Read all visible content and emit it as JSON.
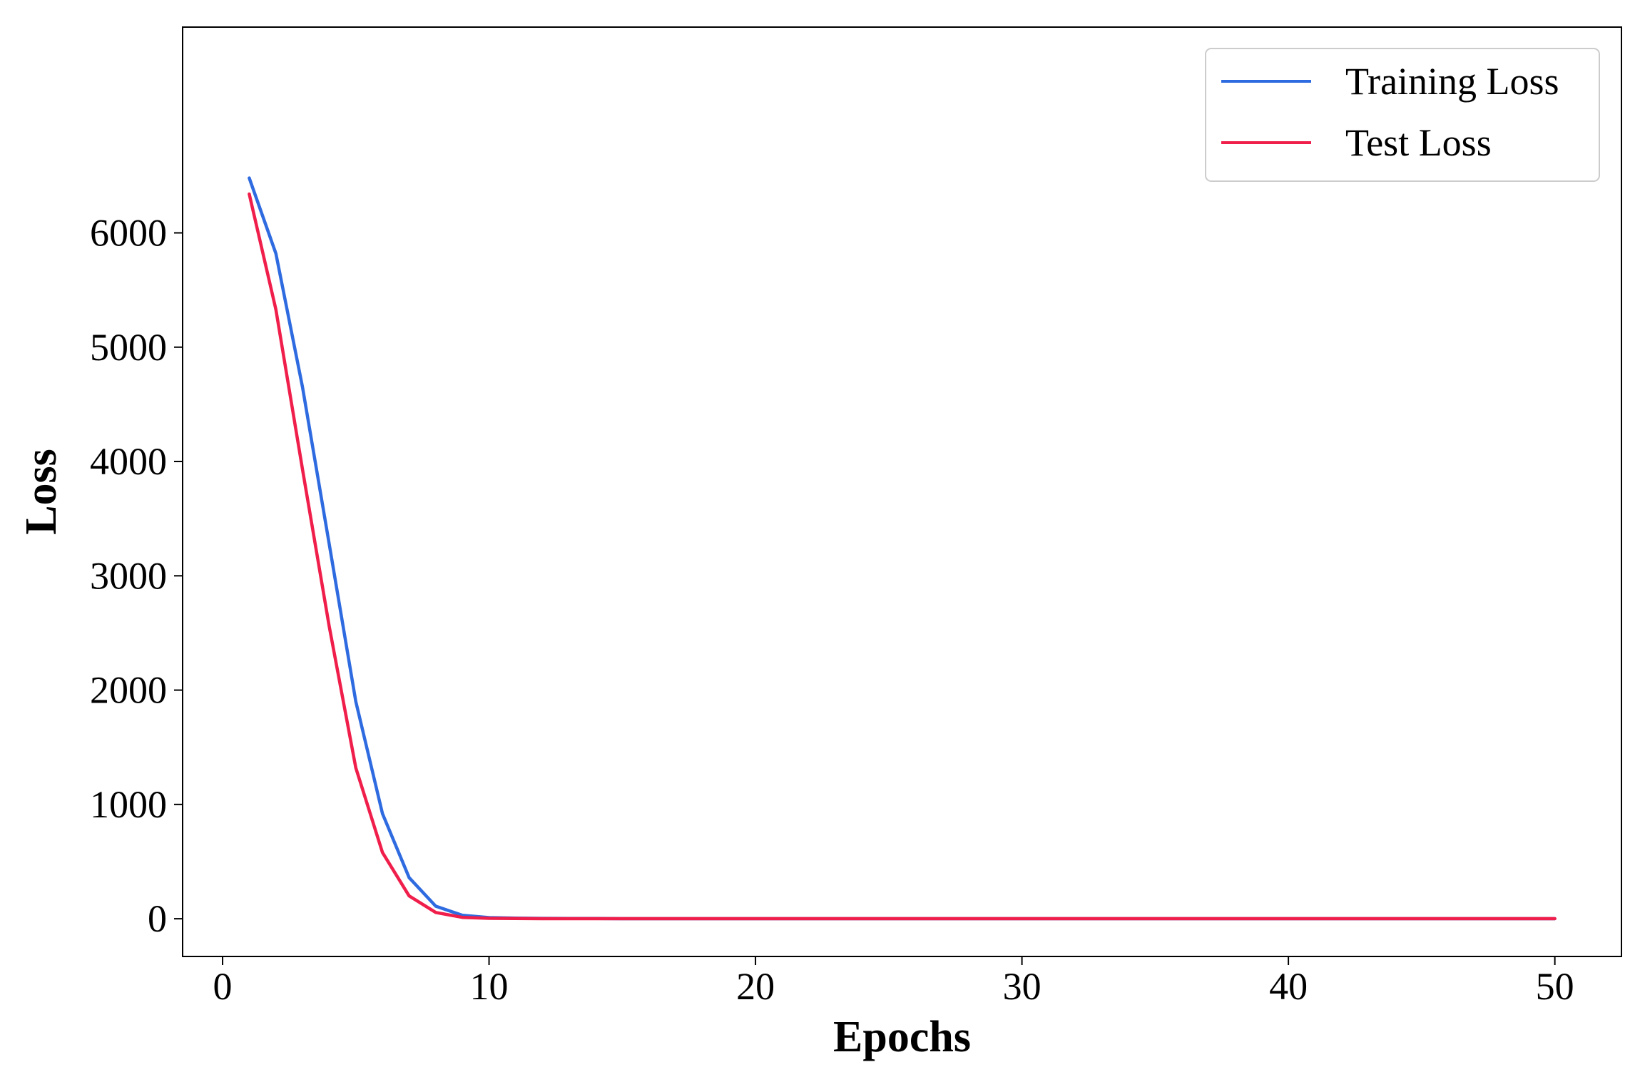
{
  "chart_data": {
    "type": "line",
    "title": "",
    "xlabel": "Epochs",
    "ylabel": "Loss",
    "xlim": [
      -1.5,
      52.5
    ],
    "ylim": [
      -330,
      7800
    ],
    "xticks": [
      0,
      10,
      20,
      30,
      40,
      50
    ],
    "yticks": [
      0,
      1000,
      2000,
      3000,
      4000,
      5000,
      6000
    ],
    "grid": false,
    "legend_position": "top-right",
    "x": [
      1,
      2,
      3,
      4,
      5,
      6,
      7,
      8,
      9,
      10,
      11,
      12,
      13,
      14,
      15,
      16,
      17,
      18,
      19,
      20,
      21,
      22,
      23,
      24,
      25,
      26,
      27,
      28,
      29,
      30,
      31,
      32,
      33,
      34,
      35,
      36,
      37,
      38,
      39,
      40,
      41,
      42,
      43,
      44,
      45,
      46,
      47,
      48,
      49,
      50
    ],
    "series": [
      {
        "name": "Training Loss",
        "color": "#2f6be0",
        "values": [
          6480,
          5820,
          4650,
          3280,
          1900,
          920,
          360,
          110,
          30,
          10,
          5,
          3,
          2,
          2,
          1,
          1,
          1,
          1,
          1,
          1,
          1,
          1,
          1,
          1,
          1,
          1,
          1,
          1,
          1,
          1,
          1,
          1,
          1,
          1,
          1,
          1,
          1,
          1,
          1,
          1,
          1,
          1,
          1,
          1,
          1,
          1,
          1,
          1,
          1,
          1
        ]
      },
      {
        "name": "Test Loss",
        "color": "#f01e4a",
        "values": [
          6340,
          5330,
          3930,
          2560,
          1320,
          580,
          200,
          55,
          12,
          4,
          2,
          1,
          1,
          1,
          1,
          1,
          1,
          1,
          1,
          1,
          1,
          1,
          1,
          1,
          1,
          1,
          1,
          1,
          1,
          1,
          1,
          1,
          1,
          1,
          1,
          1,
          1,
          1,
          1,
          1,
          1,
          1,
          1,
          1,
          1,
          1,
          1,
          1,
          1,
          1
        ]
      }
    ]
  }
}
